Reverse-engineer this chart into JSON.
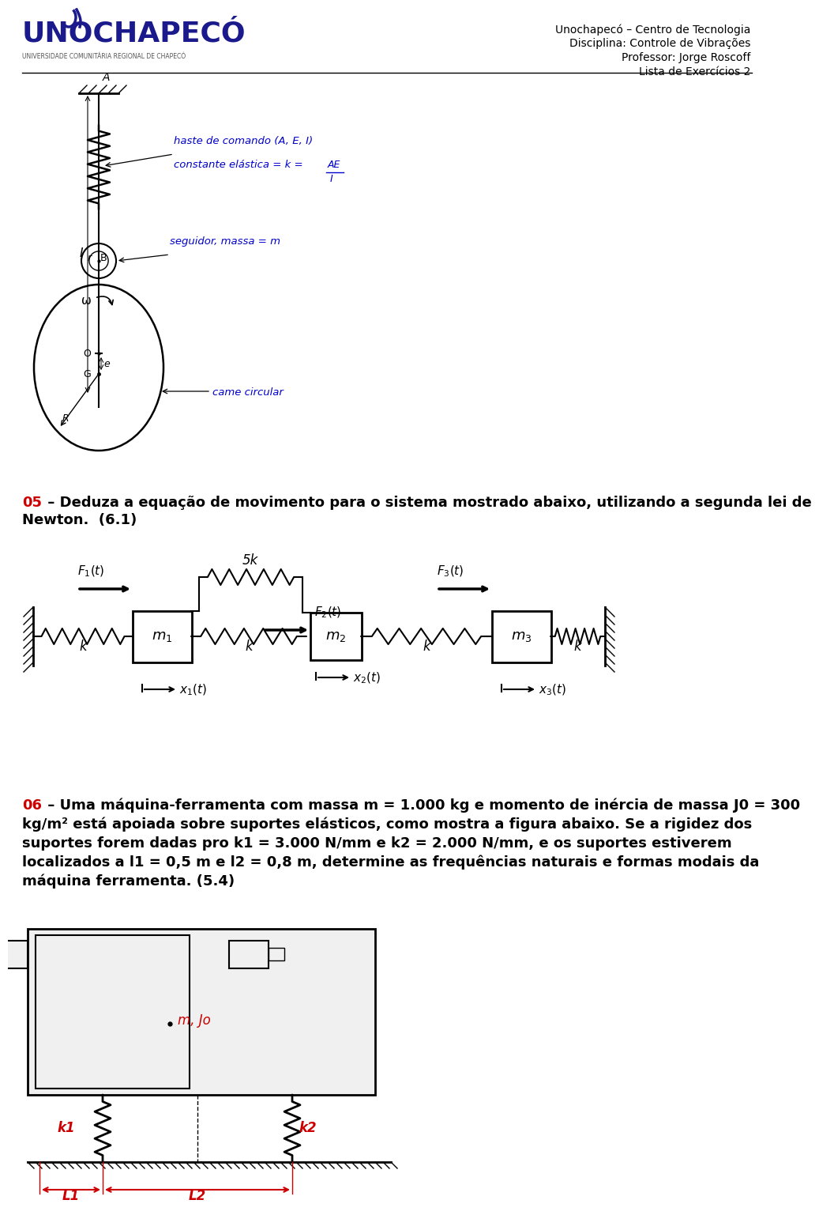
{
  "header_right": [
    "Unochapecó – Centro de Tecnologia",
    "Disciplina: Controle de Vibrações",
    "Professor: Jorge Roscoff",
    "Lista de Exercícios 2"
  ],
  "section05_line1": "05 – Deduza a equação de movimento para o sistema mostrado abaixo, utilizando a segunda lei de",
  "section05_line2": "Newton.  (6.1)",
  "section06_lines": [
    "06 – Uma máquina-ferramenta com massa m = 1.000 kg e momento de inércia de massa J0 = 300",
    "kg/m² está apoiada sobre suportes elásticos, como mostra a figura abaixo. Se a rigidez dos",
    "suportes forem dadas pro k1 = 3.000 N/mm e k2 = 2.000 N/mm, e os suportes estiverem",
    "localizados a l1 = 0,5 m e l2 = 0,8 m, determine as frequências naturais e formas modais da",
    "máquina ferramenta. (5.4)"
  ],
  "bg_color": "#ffffff",
  "red_color": "#cc0000",
  "blue_color": "#0000cc",
  "black_color": "#000000"
}
